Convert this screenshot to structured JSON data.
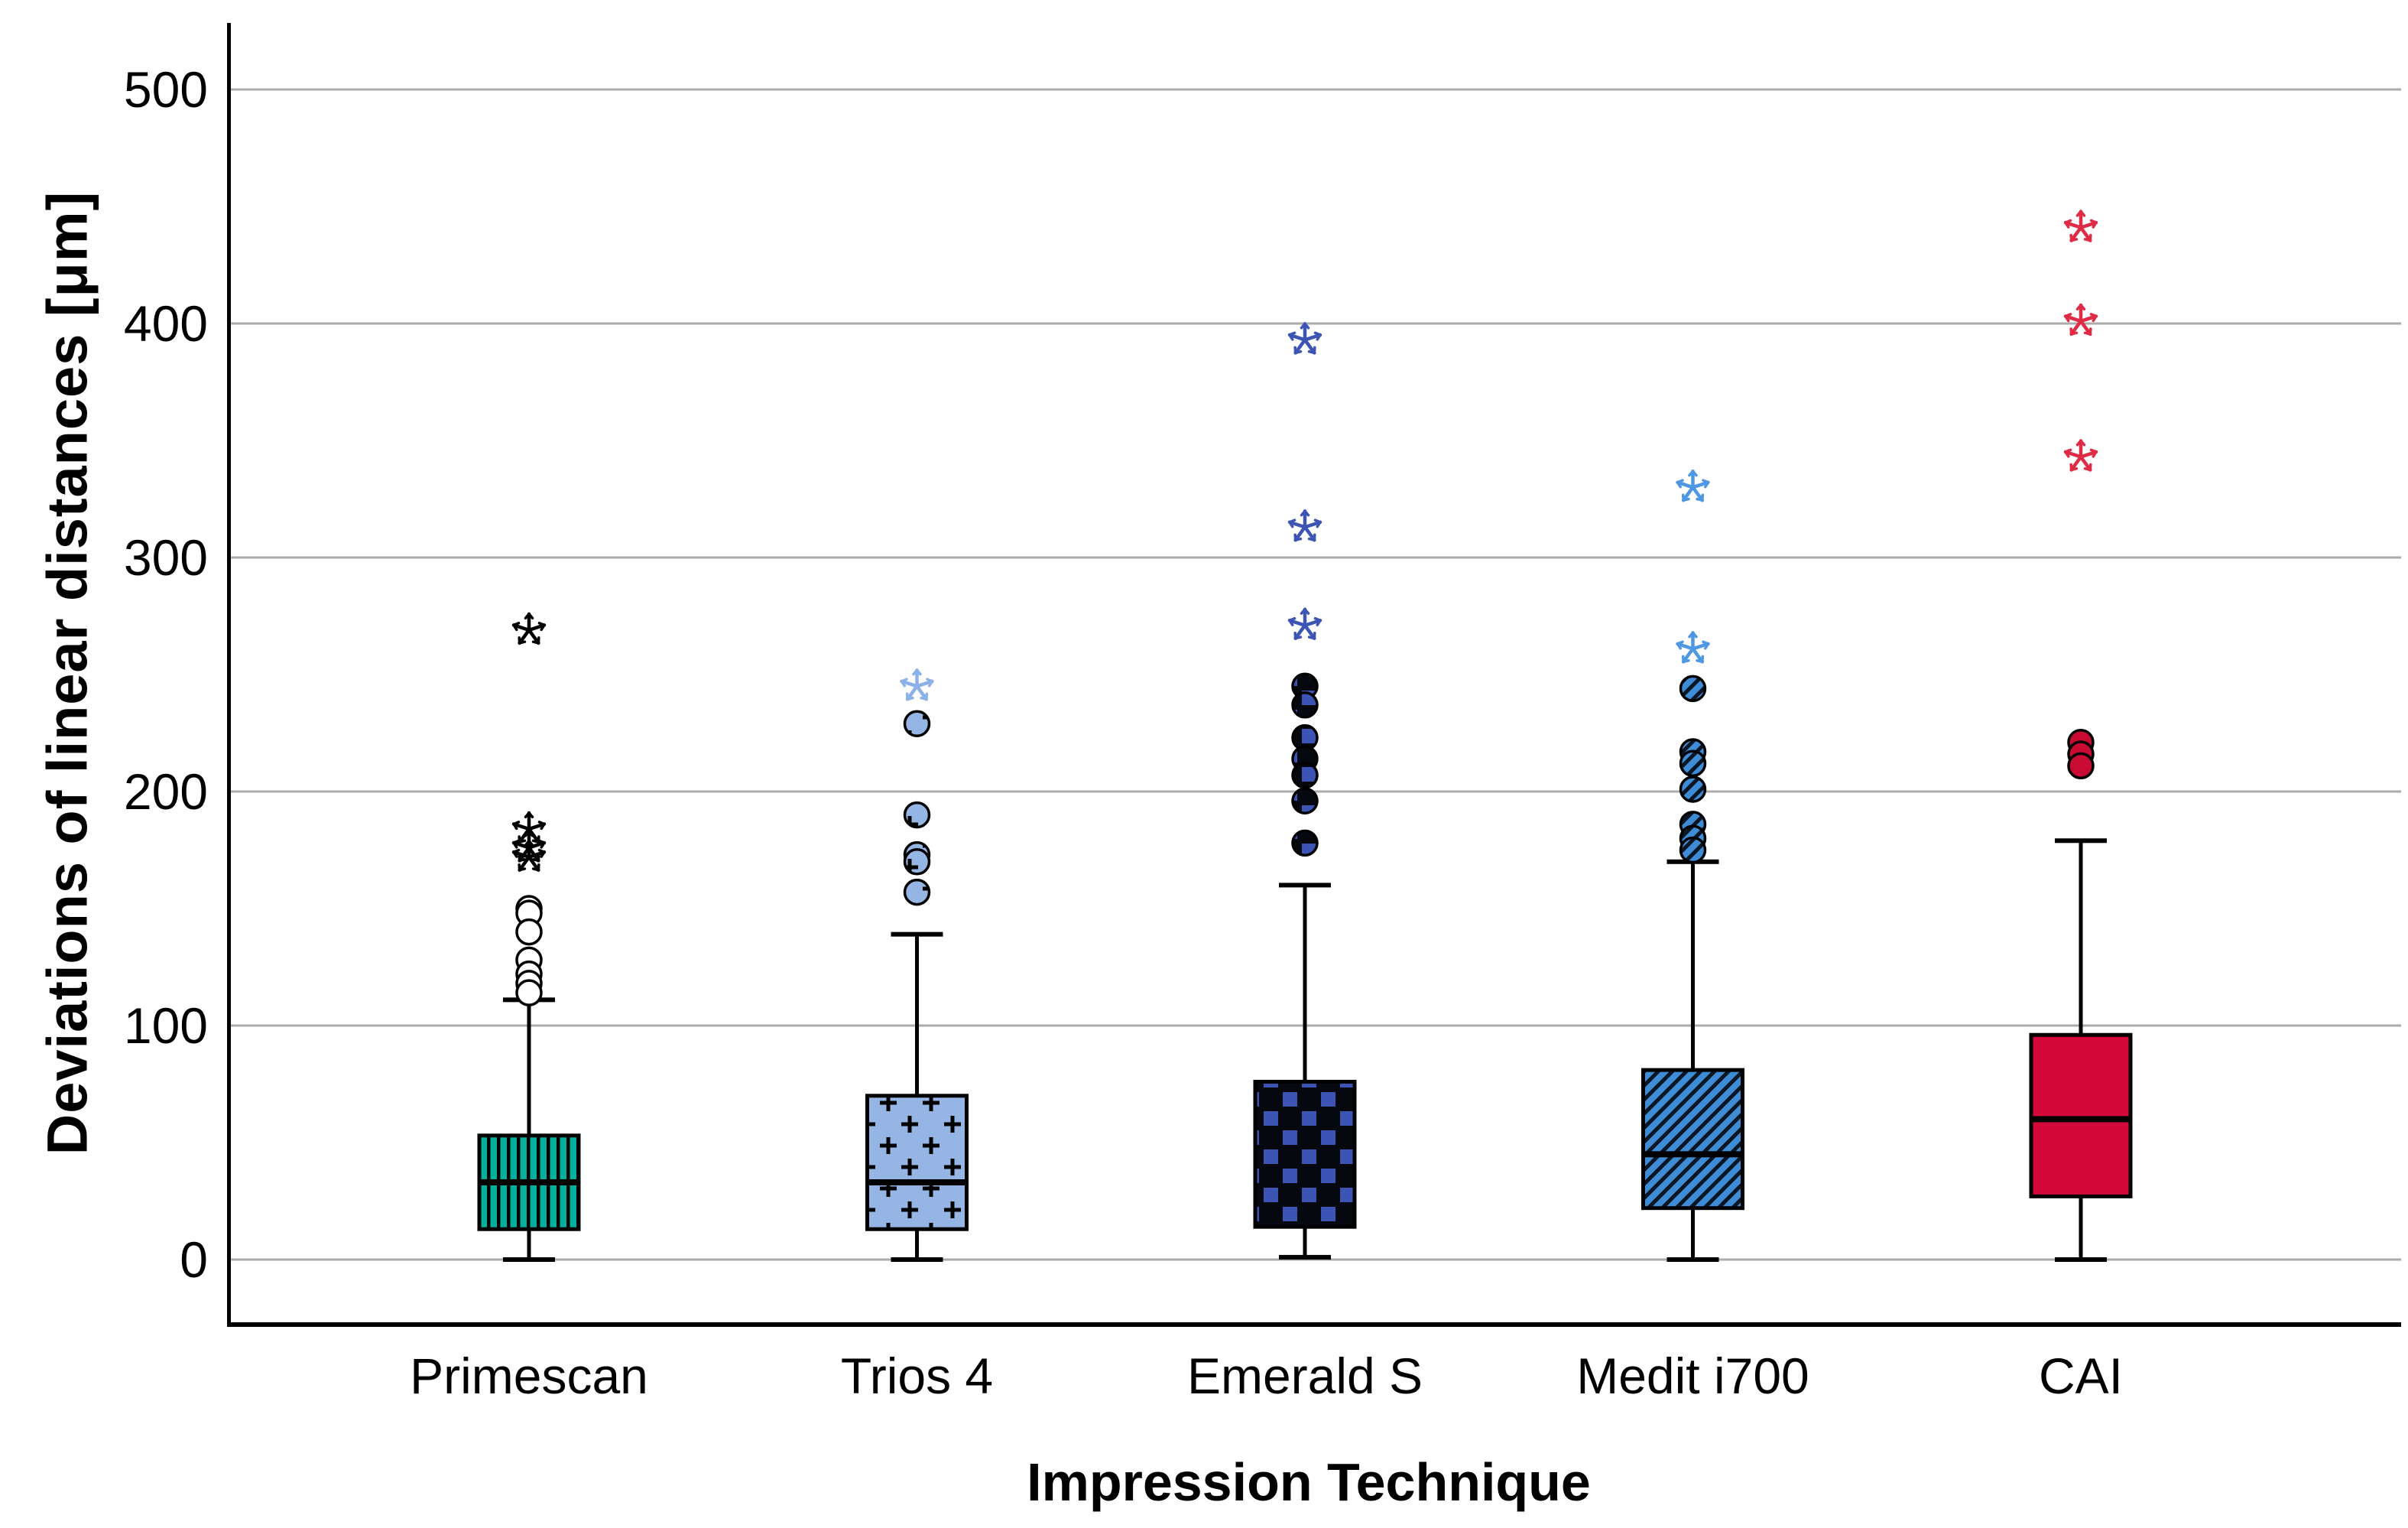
{
  "chart_data": {
    "type": "boxplot",
    "title": "",
    "ylabel": "Deviations of linear distances [μm]",
    "xlabel": "Impression Technique",
    "ylim": [
      0,
      500
    ],
    "yticks": [
      0,
      100,
      200,
      300,
      400,
      500
    ],
    "grid": "horizontal-gray",
    "legend": "none",
    "axis_color": "#000000",
    "gridline_color": "#ABABAB",
    "categories": [
      "Primescan",
      "Trios 4",
      "Emerald S",
      "Medit i700",
      "CAI"
    ],
    "series": [
      {
        "name": "Primescan",
        "box": {
          "q1": 13,
          "median": 33,
          "q3": 53,
          "whisker_low": 0,
          "whisker_high": 111
        },
        "outliers_circles": [
          150,
          148,
          140,
          128,
          122,
          118,
          114
        ],
        "outliers_stars": [
          269,
          184,
          176,
          172
        ],
        "fill": "#05AF9E",
        "pattern": "vertical-stripes",
        "pattern_color": "#000000",
        "circle_fill": "#ffffff",
        "star_color": "#000000"
      },
      {
        "name": "Trios 4",
        "box": {
          "q1": 13,
          "median": 33,
          "q3": 70,
          "whisker_low": 0,
          "whisker_high": 139
        },
        "outliers_circles": [
          229,
          190,
          173,
          170,
          157
        ],
        "outliers_stars": [
          245
        ],
        "fill": "#95B5E5",
        "pattern": "plus-grid",
        "pattern_color": "#000000",
        "circle_fill": "pattern",
        "star_color": "#8CB0E8"
      },
      {
        "name": "Emerald S",
        "box": {
          "q1": 14,
          "median": null,
          "q3": 76,
          "whisker_low": 1,
          "whisker_high": 160
        },
        "outliers_circles": [
          245,
          237,
          223,
          214,
          207,
          196,
          178
        ],
        "outliers_stars": [
          393,
          313,
          271
        ],
        "fill": "#05080F",
        "pattern": "checker",
        "pattern_color": "#3C55B5",
        "circle_fill": "pattern",
        "star_color": "#3C55B5"
      },
      {
        "name": "Medit i700",
        "box": {
          "q1": 22,
          "median": 45,
          "q3": 81,
          "whisker_low": 0,
          "whisker_high": 170
        },
        "outliers_circles": [
          244,
          217,
          212,
          201,
          186,
          180,
          175
        ],
        "outliers_stars": [
          330,
          261
        ],
        "fill": "#3E8CD6",
        "pattern": "diagonal-stripes",
        "pattern_color": "#0A1624",
        "circle_fill": "pattern",
        "star_color": "#4E97E3"
      },
      {
        "name": "CAI",
        "box": {
          "q1": 27,
          "median": 60,
          "q3": 96,
          "whisker_low": 0,
          "whisker_high": 179
        },
        "outliers_circles": [
          221,
          216,
          211
        ],
        "outliers_stars": [
          441,
          401,
          343
        ],
        "fill": "#D50939",
        "pattern": "solid",
        "pattern_color": "#D50939",
        "circle_fill": "#C90A33",
        "star_color": "#DF2B44"
      }
    ]
  }
}
